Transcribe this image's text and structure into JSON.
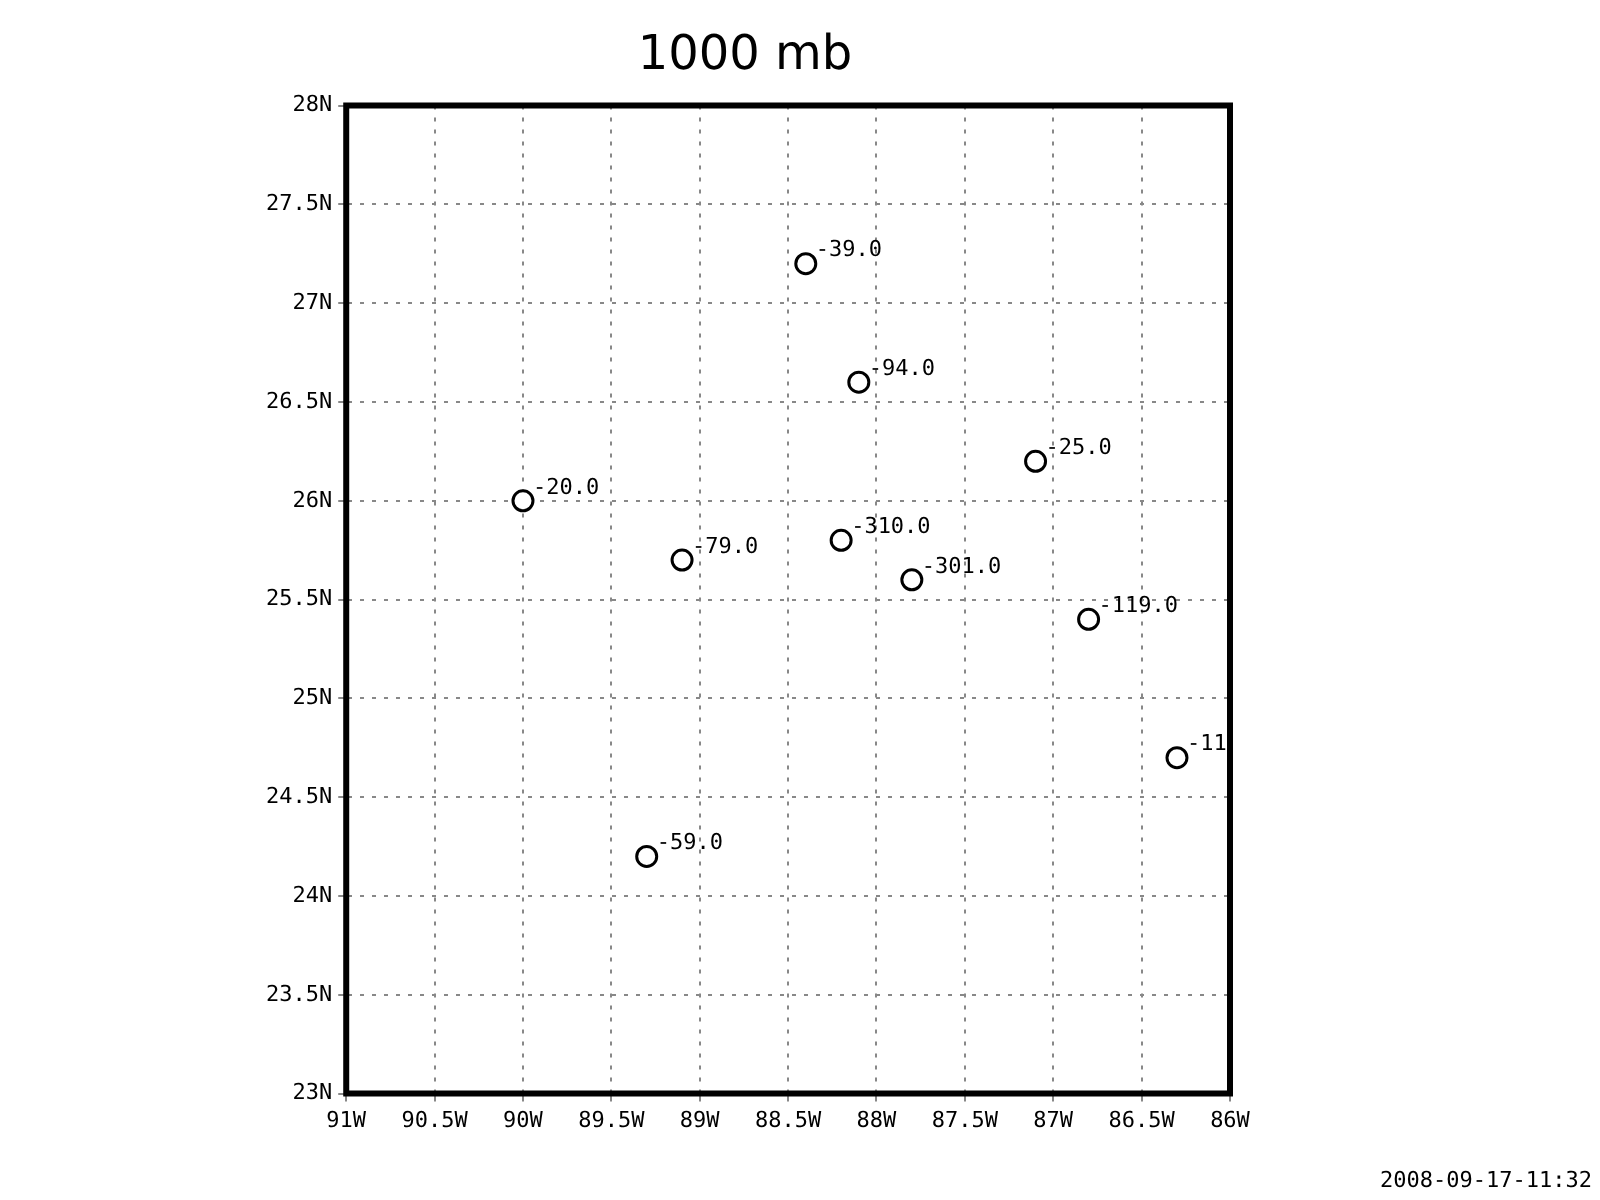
{
  "chart_data": {
    "type": "scatter",
    "title": "1000 mb",
    "x": [
      -88.4,
      -88.1,
      -87.1,
      -90.0,
      -89.1,
      -88.2,
      -87.8,
      -86.8,
      -86.3,
      -89.3
    ],
    "values": [
      27.2,
      26.6,
      26.2,
      26.0,
      25.7,
      25.8,
      25.6,
      25.4,
      24.7,
      24.2
    ],
    "color": "#000000",
    "marker": "circle",
    "xlim": [
      -91,
      -86
    ],
    "xticks": [
      {
        "value": -91,
        "label": "91W"
      },
      {
        "value": -90.5,
        "label": "90.5W"
      },
      {
        "value": -90,
        "label": "90W"
      },
      {
        "value": -89.5,
        "label": "89.5W"
      },
      {
        "value": -89,
        "label": "89W"
      },
      {
        "value": -88.5,
        "label": "88.5W"
      },
      {
        "value": -88,
        "label": "88W"
      },
      {
        "value": -87.5,
        "label": "87.5W"
      },
      {
        "value": -87,
        "label": "87W"
      },
      {
        "value": -86.5,
        "label": "86.5W"
      },
      {
        "value": -86,
        "label": "86W"
      }
    ],
    "ylim": [
      23,
      28
    ],
    "yticks": [
      {
        "value": 23,
        "label": "23N"
      },
      {
        "value": 23.5,
        "label": "23.5N"
      },
      {
        "value": 24,
        "label": "24N"
      },
      {
        "value": 24.5,
        "label": "24.5N"
      },
      {
        "value": 25,
        "label": "25N"
      },
      {
        "value": 25.5,
        "label": "25.5N"
      },
      {
        "value": 26,
        "label": "26N"
      },
      {
        "value": 26.5,
        "label": "26.5N"
      },
      {
        "value": 27,
        "label": "27N"
      },
      {
        "value": 27.5,
        "label": "27.5N"
      },
      {
        "value": 28,
        "label": "28N"
      }
    ],
    "grid": true,
    "annotations": [
      {
        "text": "-39.0",
        "x": -88.4,
        "y": 27.2
      },
      {
        "text": "-94.0",
        "x": -88.1,
        "y": 26.6
      },
      {
        "text": "-25.0",
        "x": -87.1,
        "y": 26.2
      },
      {
        "text": "-20.0",
        "x": -90.0,
        "y": 26.0
      },
      {
        "text": "-79.0",
        "x": -89.1,
        "y": 25.7
      },
      {
        "text": "-310.0",
        "x": -88.2,
        "y": 25.8
      },
      {
        "text": "-301.0",
        "x": -87.8,
        "y": 25.6
      },
      {
        "text": "-119.0",
        "x": -86.8,
        "y": 25.4
      },
      {
        "text": "-11",
        "x": -86.3,
        "y": 24.7
      },
      {
        "text": "-59.0",
        "x": -89.3,
        "y": 24.2
      },
      "2008-09-17-11:32"
    ]
  }
}
